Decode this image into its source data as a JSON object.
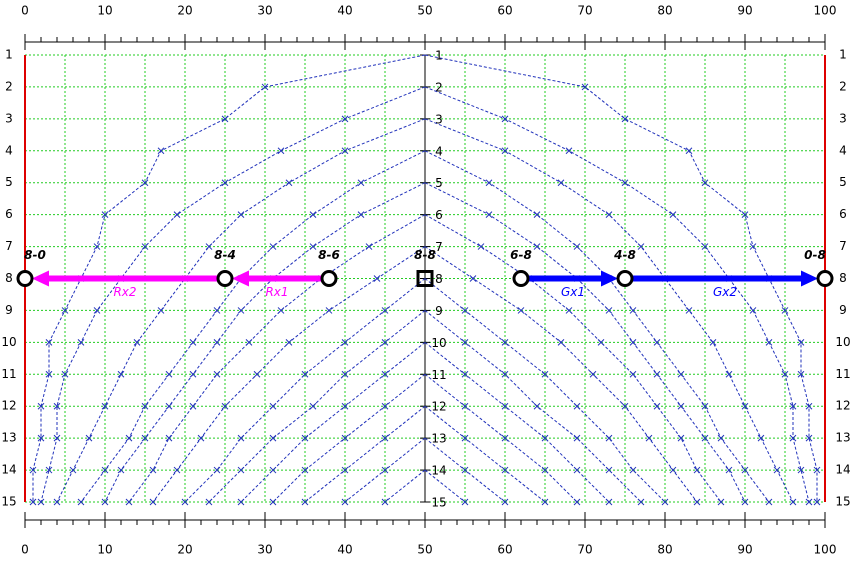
{
  "chart_data": {
    "type": "lattice",
    "xlim": [
      0,
      100
    ],
    "ylim": [
      1,
      15
    ],
    "xticks": [
      0,
      10,
      20,
      30,
      40,
      50,
      60,
      70,
      80,
      90,
      100
    ],
    "xminorticks": [
      0,
      2,
      4,
      6,
      8,
      10,
      12,
      14,
      16,
      18,
      20,
      22,
      24,
      26,
      28,
      30,
      32,
      34,
      36,
      38,
      40,
      42,
      44,
      46,
      48,
      50,
      52,
      54,
      56,
      58,
      60,
      62,
      64,
      66,
      68,
      70,
      72,
      74,
      76,
      78,
      80,
      82,
      84,
      86,
      88,
      90,
      92,
      94,
      96,
      98,
      100
    ],
    "xgrid": [
      0,
      5,
      10,
      15,
      20,
      25,
      30,
      35,
      40,
      45,
      50,
      55,
      60,
      65,
      70,
      75,
      80,
      85,
      90,
      95,
      100
    ],
    "yticks": [
      1,
      2,
      3,
      4,
      5,
      6,
      7,
      8,
      9,
      10,
      11,
      12,
      13,
      14,
      15
    ],
    "grid_color": "#22cc22",
    "curve_color": "#2233bb",
    "edge_color": "#dd0000",
    "edges": [
      0,
      100
    ],
    "series": [
      {
        "y": [
          1,
          2,
          3,
          4,
          5,
          6,
          7,
          8,
          9,
          10,
          11,
          12,
          13,
          14,
          15
        ],
        "x_left": [
          50,
          30,
          25,
          17,
          15,
          10,
          9,
          7,
          5,
          3,
          3,
          2,
          2,
          1,
          1
        ],
        "x_right": [
          50,
          70,
          75,
          83,
          85,
          90,
          91,
          93,
          95,
          97,
          97,
          98,
          98,
          99,
          99
        ]
      },
      {
        "y": [
          2,
          3,
          4,
          5,
          6,
          7,
          8,
          9,
          10,
          11,
          12,
          13,
          14,
          15
        ],
        "x_left": [
          50,
          40,
          32,
          25,
          19,
          15,
          12,
          9,
          7,
          5,
          4,
          4,
          3,
          2
        ],
        "x_right": [
          50,
          60,
          68,
          75,
          81,
          85,
          88,
          91,
          93,
          95,
          96,
          96,
          97,
          98
        ]
      },
      {
        "y": [
          3,
          4,
          5,
          6,
          7,
          8,
          9,
          10,
          11,
          12,
          13,
          14,
          15
        ],
        "x_left": [
          50,
          40,
          33,
          27,
          23,
          20,
          17,
          14,
          12,
          10,
          8,
          6,
          4
        ],
        "x_right": [
          50,
          60,
          67,
          73,
          77,
          80,
          83,
          86,
          88,
          90,
          92,
          94,
          96
        ]
      },
      {
        "y": [
          4,
          5,
          6,
          7,
          8,
          9,
          10,
          11,
          12,
          13,
          14,
          15
        ],
        "x_left": [
          50,
          42,
          36,
          31,
          27,
          24,
          21,
          18,
          15,
          13,
          10,
          7
        ],
        "x_right": [
          50,
          58,
          64,
          69,
          73,
          76,
          79,
          82,
          85,
          87,
          90,
          93
        ]
      },
      {
        "y": [
          5,
          6,
          7,
          8,
          9,
          10,
          11,
          12,
          13,
          14,
          15
        ],
        "x_left": [
          50,
          42,
          36,
          31,
          27,
          24,
          21,
          18,
          15,
          12,
          10
        ],
        "x_right": [
          50,
          58,
          64,
          69,
          73,
          76,
          79,
          82,
          85,
          88,
          90
        ]
      },
      {
        "y": [
          6,
          7,
          8,
          9,
          10,
          11,
          12,
          13,
          14,
          15
        ],
        "x_left": [
          50,
          43,
          37,
          32,
          28,
          24,
          21,
          18,
          16,
          13
        ],
        "x_right": [
          50,
          57,
          63,
          68,
          72,
          76,
          79,
          82,
          84,
          87
        ]
      },
      {
        "y": [
          7,
          8,
          9,
          10,
          11,
          12,
          13,
          14,
          15
        ],
        "x_left": [
          50,
          44,
          38,
          33,
          29,
          25,
          22,
          19,
          16
        ],
        "x_right": [
          50,
          56,
          62,
          67,
          71,
          75,
          78,
          81,
          84
        ]
      },
      {
        "y": [
          8,
          9,
          10,
          11,
          12,
          13,
          14,
          15
        ],
        "x_left": [
          50,
          45,
          40,
          35,
          31,
          27,
          24,
          20
        ],
        "x_right": [
          50,
          55,
          60,
          65,
          69,
          73,
          76,
          80
        ]
      },
      {
        "y": [
          9,
          10,
          11,
          12,
          13,
          14,
          15
        ],
        "x_left": [
          50,
          45,
          40,
          36,
          31,
          27,
          23
        ],
        "x_right": [
          50,
          55,
          60,
          64,
          69,
          73,
          77
        ]
      },
      {
        "y": [
          10,
          11,
          12,
          13,
          14,
          15
        ],
        "x_left": [
          50,
          45,
          40,
          35,
          31,
          27
        ],
        "x_right": [
          50,
          55,
          60,
          65,
          69,
          73
        ]
      },
      {
        "y": [
          11,
          12,
          13,
          14,
          15
        ],
        "x_left": [
          50,
          45,
          40,
          35,
          31
        ],
        "x_right": [
          50,
          55,
          60,
          65,
          69
        ]
      },
      {
        "y": [
          12,
          13,
          14,
          15
        ],
        "x_left": [
          50,
          45,
          40,
          35
        ],
        "x_right": [
          50,
          55,
          60,
          65
        ]
      },
      {
        "y": [
          13,
          14,
          15
        ],
        "x_left": [
          50,
          45,
          40
        ],
        "x_right": [
          50,
          55,
          60
        ]
      },
      {
        "y": [
          14,
          15
        ],
        "x_left": [
          50,
          45
        ],
        "x_right": [
          50,
          55
        ]
      }
    ],
    "points": [
      {
        "label": "8-0",
        "x": 0,
        "y": 8,
        "shape": "circle"
      },
      {
        "label": "8-4",
        "x": 25,
        "y": 8,
        "shape": "circle"
      },
      {
        "label": "8-6",
        "x": 38,
        "y": 8,
        "shape": "circle"
      },
      {
        "label": "8-8",
        "x": 50,
        "y": 8,
        "shape": "square"
      },
      {
        "label": "6-8",
        "x": 62,
        "y": 8,
        "shape": "circle"
      },
      {
        "label": "4-8",
        "x": 75,
        "y": 8,
        "shape": "circle"
      },
      {
        "label": "0-8",
        "x": 100,
        "y": 8,
        "shape": "circle"
      }
    ],
    "arrows": [
      {
        "label": "Rx1",
        "from": 38,
        "to": 25,
        "y": 8,
        "color": "#ff00ff"
      },
      {
        "label": "Rx2",
        "from": 25,
        "to": 0,
        "y": 8,
        "color": "#ff00ff"
      },
      {
        "label": "Gx1",
        "from": 62,
        "to": 75,
        "y": 8,
        "color": "#0000ff"
      },
      {
        "label": "Gx2",
        "from": 75,
        "to": 100,
        "y": 8,
        "color": "#0000ff"
      }
    ]
  }
}
